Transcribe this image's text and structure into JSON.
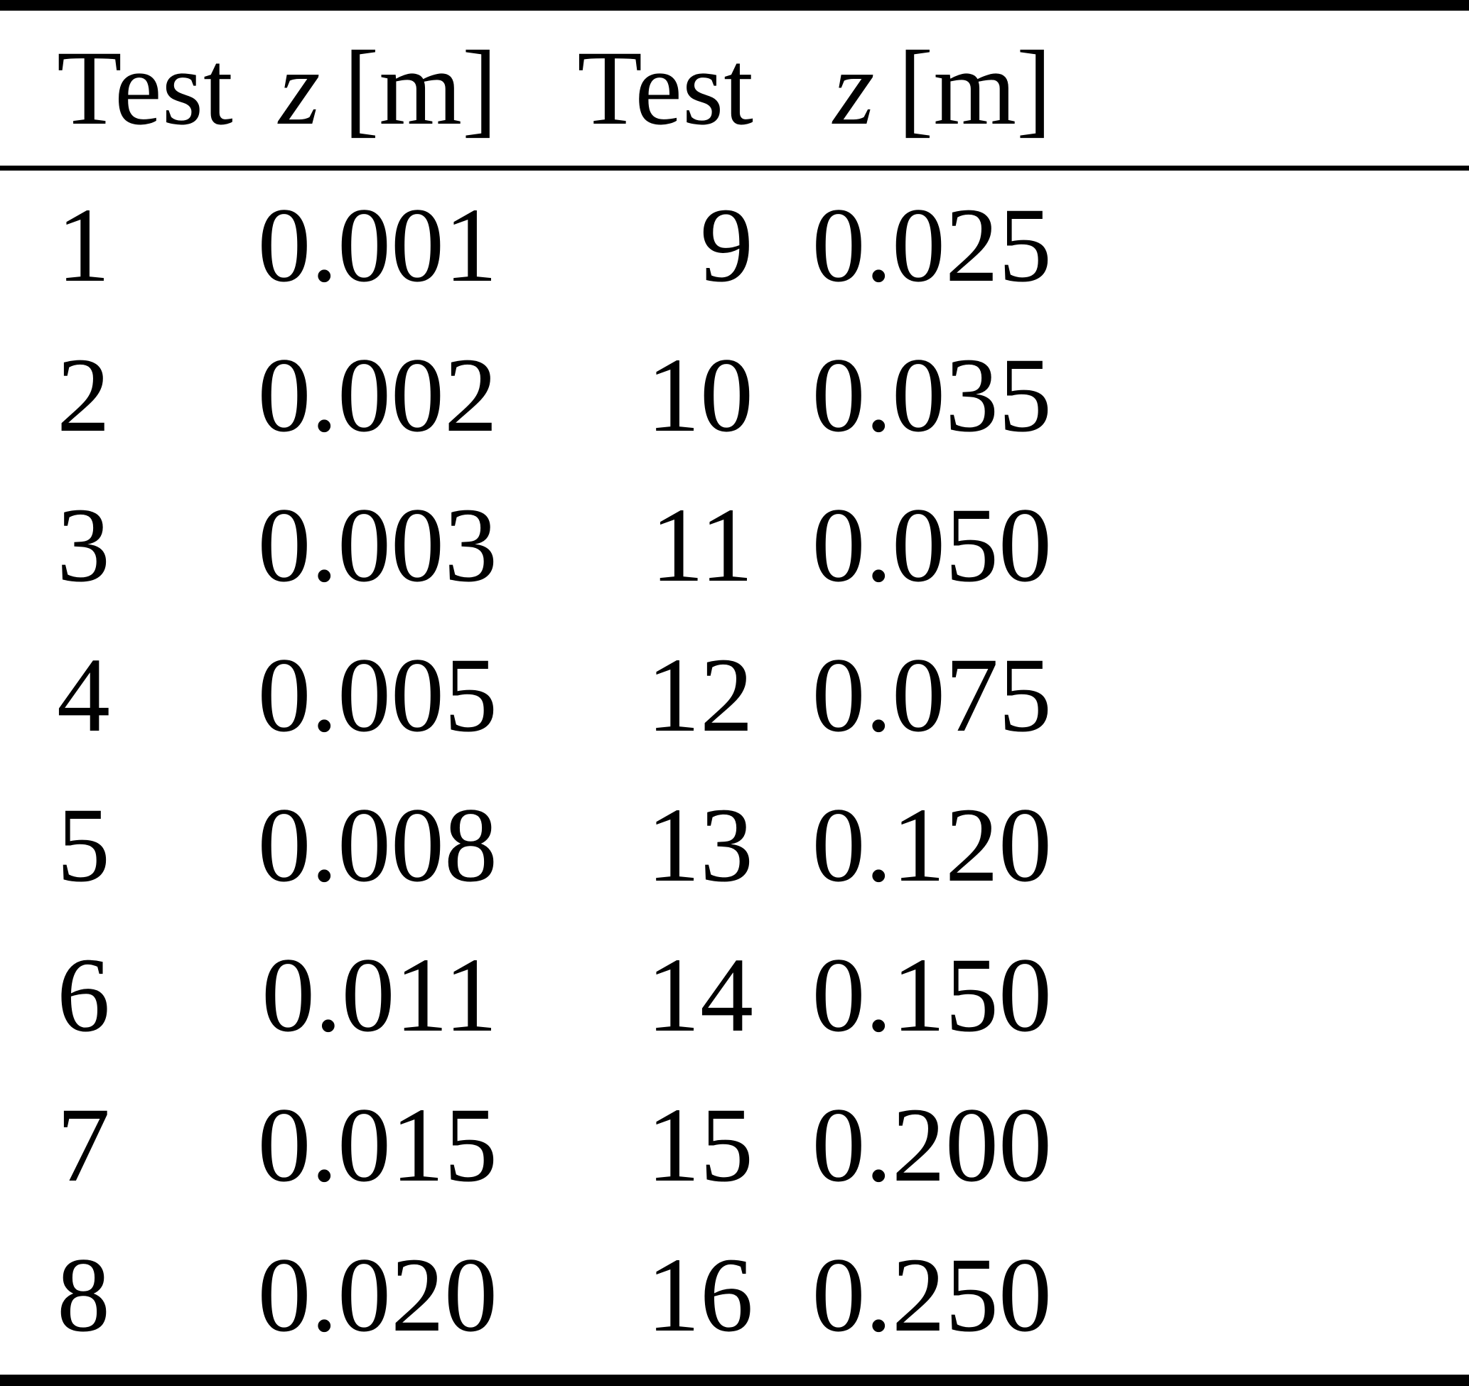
{
  "table": {
    "headers": {
      "test_left": "Test",
      "z_var_left": "z",
      "z_unit_left": "[m]",
      "test_right": "Test",
      "z_var_right": "z",
      "z_unit_right": "[m]"
    },
    "rows": [
      {
        "t1": "1",
        "z1": "0.001",
        "t2": "9",
        "z2": "0.025"
      },
      {
        "t1": "2",
        "z1": "0.002",
        "t2": "10",
        "z2": "0.035"
      },
      {
        "t1": "3",
        "z1": "0.003",
        "t2": "11",
        "z2": "0.050"
      },
      {
        "t1": "4",
        "z1": "0.005",
        "t2": "12",
        "z2": "0.075"
      },
      {
        "t1": "5",
        "z1": "0.008",
        "t2": "13",
        "z2": "0.120"
      },
      {
        "t1": "6",
        "z1": "0.011",
        "t2": "14",
        "z2": "0.150"
      },
      {
        "t1": "7",
        "z1": "0.015",
        "t2": "15",
        "z2": "0.200"
      },
      {
        "t1": "8",
        "z1": "0.020",
        "t2": "16",
        "z2": "0.250"
      }
    ]
  }
}
